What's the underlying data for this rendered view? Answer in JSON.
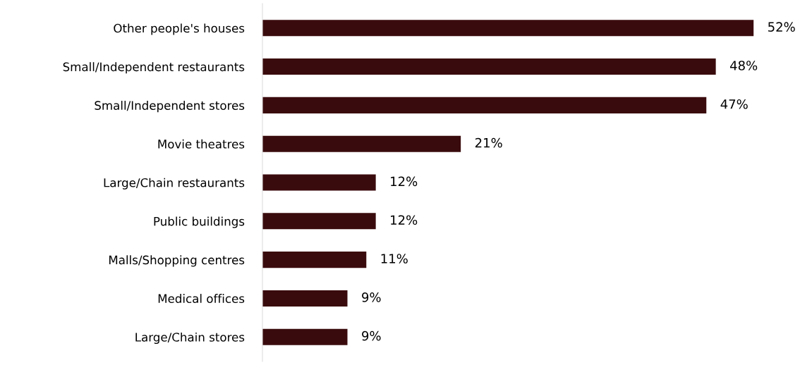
{
  "chart_data": {
    "type": "bar",
    "orientation": "horizontal",
    "categories": [
      "Other people's houses",
      "Small/Independent restaurants",
      "Small/Independent stores",
      "Movie theatres",
      "Large/Chain restaurants",
      "Public buildings",
      "Malls/Shopping centres",
      "Medical offices",
      "Large/Chain stores"
    ],
    "values": [
      52,
      48,
      47,
      21,
      12,
      12,
      11,
      9,
      9
    ],
    "value_labels": [
      "52%",
      "48%",
      "47%",
      "21%",
      "12%",
      "12%",
      "11%",
      "9%",
      "9%"
    ],
    "color": "#3a0b0d",
    "grid": false,
    "legend": false
  }
}
